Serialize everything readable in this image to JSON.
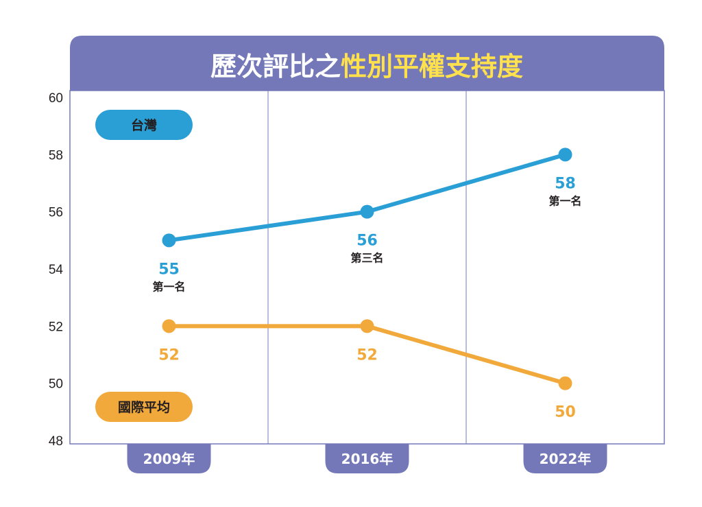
{
  "chart_data": {
    "type": "line",
    "title_prefix": "歷次評比之",
    "title_highlight": "性別平權支持度",
    "categories": [
      "2009年",
      "2016年",
      "2022年"
    ],
    "ylim": [
      48,
      60
    ],
    "yticks": [
      48,
      50,
      52,
      54,
      56,
      58,
      60
    ],
    "grid": "vertical",
    "series": [
      {
        "name": "台灣",
        "color": "#2a9fd6",
        "values": [
          55,
          56,
          58
        ],
        "ranks": [
          "第一名",
          "第三名",
          "第一名"
        ]
      },
      {
        "name": "國際平均",
        "color": "#f2a93b",
        "values": [
          52,
          52,
          50
        ],
        "ranks": [
          "",
          "",
          ""
        ]
      }
    ]
  },
  "colors": {
    "frame": "#7478b8",
    "title_text": "#ffffff",
    "title_highlight": "#ffe14d"
  }
}
